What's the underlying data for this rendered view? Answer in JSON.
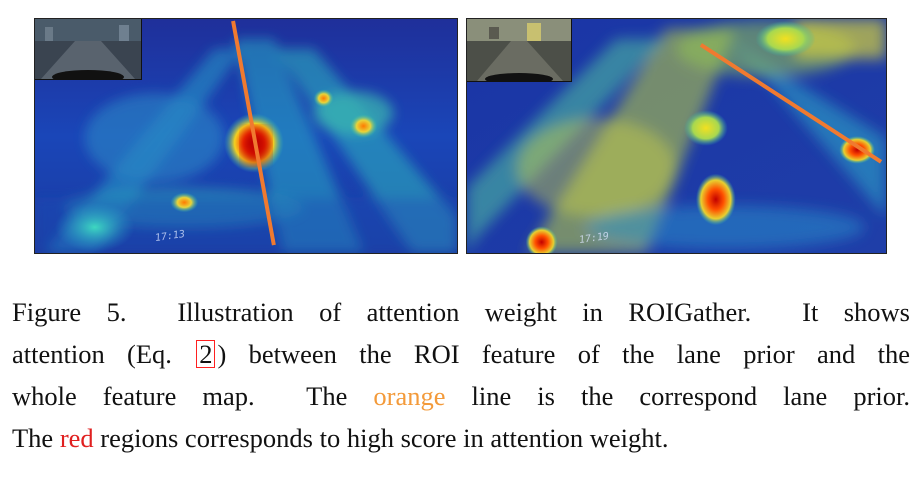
{
  "figure": {
    "caption": {
      "line1": "Figure 5.  Illustration of attention weight in ROIGather.  It shows",
      "line2_pre": "attention (Eq.",
      "eq_ref": "2",
      "line2_post": ") between the ROI feature of the lane prior and the",
      "line3_pre": "whole feature map.  The ",
      "orange_word": "orange",
      "line3_post": " line is the correspond lane prior.",
      "line4_pre": "The ",
      "red_word": "red",
      "line4_post": " regions corresponds to high score in attention weight."
    },
    "panels": [
      {
        "id": "left",
        "timestamp": "17:13"
      },
      {
        "id": "right",
        "timestamp": "17:19"
      }
    ],
    "colors": {
      "lane_prior": "#f07a30",
      "high_attention": "#e02020",
      "low_attention": "#1a2aa8"
    }
  }
}
